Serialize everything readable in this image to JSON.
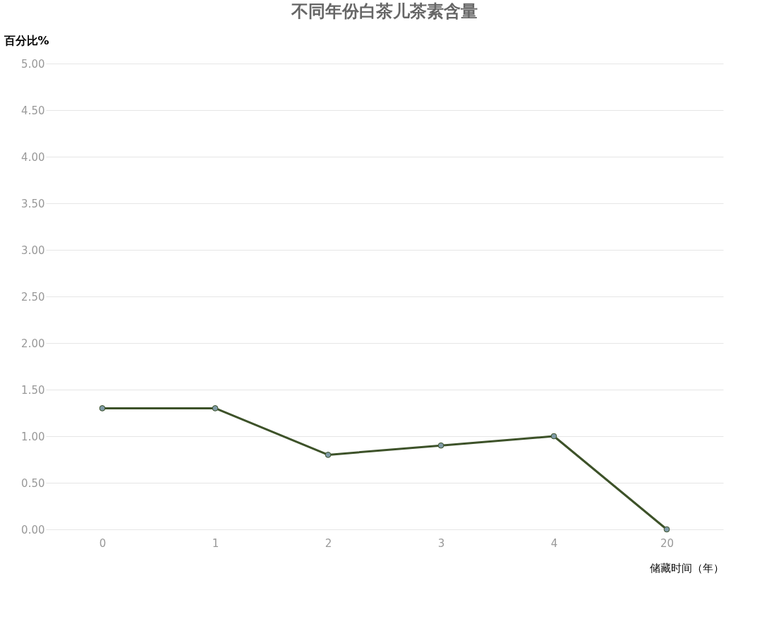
{
  "chart_data": {
    "type": "line",
    "title": "不同年份白茶儿茶素含量",
    "ylabel": "百分比%",
    "xlabel": "储藏时间（年）",
    "categories": [
      "0",
      "1",
      "2",
      "3",
      "4",
      "20"
    ],
    "series": [
      {
        "color": "#3d5229",
        "values": [
          1.3,
          1.3,
          0.8,
          0.9,
          1.0,
          0.0
        ]
      }
    ],
    "ylim": [
      0,
      5
    ],
    "yticks": [
      {
        "value": 0,
        "label": "0.00"
      },
      {
        "value": 0.5,
        "label": "0.50"
      },
      {
        "value": 1,
        "label": "1.00"
      },
      {
        "value": 1.5,
        "label": "1.50"
      },
      {
        "value": 2,
        "label": "2.00"
      },
      {
        "value": 2.5,
        "label": "2.50"
      },
      {
        "value": 3,
        "label": "3.00"
      },
      {
        "value": 3.5,
        "label": "3.50"
      },
      {
        "value": 4,
        "label": "4.00"
      },
      {
        "value": 4.5,
        "label": "4.50"
      },
      {
        "value": 5,
        "label": "5.00"
      }
    ],
    "grid": "y",
    "marker": "circle",
    "line_style": "solid"
  }
}
